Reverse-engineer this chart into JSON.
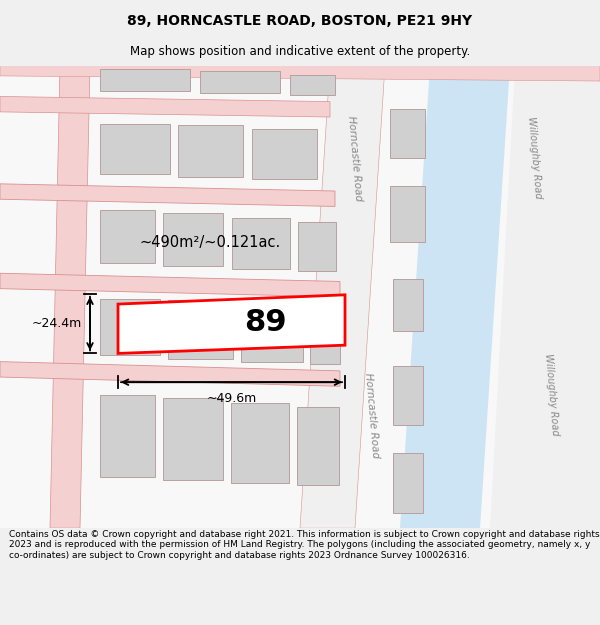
{
  "title": "89, HORNCASTLE ROAD, BOSTON, PE21 9HY",
  "subtitle": "Map shows position and indicative extent of the property.",
  "footer": "Contains OS data © Crown copyright and database right 2021. This information is subject to Crown copyright and database rights 2023 and is reproduced with the permission of HM Land Registry. The polygons (including the associated geometry, namely x, y co-ordinates) are subject to Crown copyright and database rights 2023 Ordnance Survey 100026316.",
  "bg_color": "#f0f0f0",
  "map_bg": "#f8f8f8",
  "area_label": "~490m²/~0.121ac.",
  "width_label": "~49.6m",
  "height_label": "~24.4m",
  "number_label": "89",
  "road_color": "#f5d0d0",
  "road_border_color": "#d89090",
  "building_fill": "#d0d0d0",
  "building_border": "#b8a0a0",
  "highlight_fill": "#ffffff",
  "highlight_border": "#ff0000",
  "water_color": "#cce4f4",
  "road_label_color": "#888888",
  "dim_line_color": "#000000",
  "title_fontsize": 10,
  "subtitle_fontsize": 8.5,
  "footer_fontsize": 6.5
}
